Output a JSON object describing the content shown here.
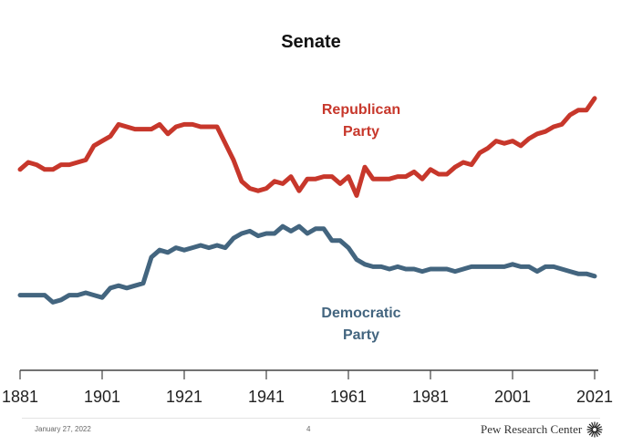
{
  "chart_data": {
    "type": "line",
    "title": "Senate",
    "x_ticks": [
      "1881",
      "1901",
      "1921",
      "1941",
      "1961",
      "1981",
      "2001",
      "2021"
    ],
    "xlim": [
      1881,
      2021
    ],
    "series": [
      {
        "name": "Republican Party",
        "label_lines": [
          "Republican",
          "Party"
        ],
        "color": "#c7372b",
        "points": [
          [
            1881,
            67
          ],
          [
            1883,
            70
          ],
          [
            1885,
            69
          ],
          [
            1887,
            67
          ],
          [
            1889,
            67
          ],
          [
            1891,
            69
          ],
          [
            1893,
            69
          ],
          [
            1895,
            70
          ],
          [
            1897,
            71
          ],
          [
            1899,
            77
          ],
          [
            1901,
            79
          ],
          [
            1903,
            81
          ],
          [
            1905,
            86
          ],
          [
            1907,
            85
          ],
          [
            1909,
            84
          ],
          [
            1911,
            84
          ],
          [
            1913,
            84
          ],
          [
            1915,
            86
          ],
          [
            1917,
            82
          ],
          [
            1919,
            85
          ],
          [
            1921,
            86
          ],
          [
            1923,
            86
          ],
          [
            1925,
            85
          ],
          [
            1927,
            85
          ],
          [
            1929,
            85
          ],
          [
            1931,
            78
          ],
          [
            1933,
            71
          ],
          [
            1935,
            62
          ],
          [
            1937,
            59
          ],
          [
            1939,
            58
          ],
          [
            1941,
            59
          ],
          [
            1943,
            62
          ],
          [
            1945,
            61
          ],
          [
            1947,
            64
          ],
          [
            1949,
            58
          ],
          [
            1951,
            63
          ],
          [
            1953,
            63
          ],
          [
            1955,
            64
          ],
          [
            1957,
            64
          ],
          [
            1959,
            61
          ],
          [
            1961,
            64
          ],
          [
            1963,
            56
          ],
          [
            1965,
            68
          ],
          [
            1967,
            63
          ],
          [
            1969,
            63
          ],
          [
            1971,
            63
          ],
          [
            1973,
            64
          ],
          [
            1975,
            64
          ],
          [
            1977,
            66
          ],
          [
            1979,
            63
          ],
          [
            1981,
            67
          ],
          [
            1983,
            65
          ],
          [
            1985,
            65
          ],
          [
            1987,
            68
          ],
          [
            1989,
            70
          ],
          [
            1991,
            69
          ],
          [
            1993,
            74
          ],
          [
            1995,
            76
          ],
          [
            1997,
            79
          ],
          [
            1999,
            78
          ],
          [
            2001,
            79
          ],
          [
            2003,
            77
          ],
          [
            2005,
            80
          ],
          [
            2007,
            82
          ],
          [
            2009,
            83
          ],
          [
            2011,
            85
          ],
          [
            2013,
            86
          ],
          [
            2015,
            90
          ],
          [
            2017,
            92
          ],
          [
            2019,
            92
          ],
          [
            2021,
            97
          ]
        ]
      },
      {
        "name": "Democratic Party",
        "label_lines": [
          "Democratic",
          "Party"
        ],
        "color": "#43657f",
        "points": [
          [
            1881,
            14
          ],
          [
            1883,
            14
          ],
          [
            1885,
            14
          ],
          [
            1887,
            14
          ],
          [
            1889,
            11
          ],
          [
            1891,
            12
          ],
          [
            1893,
            14
          ],
          [
            1895,
            14
          ],
          [
            1897,
            15
          ],
          [
            1899,
            14
          ],
          [
            1901,
            13
          ],
          [
            1903,
            17
          ],
          [
            1905,
            18
          ],
          [
            1907,
            17
          ],
          [
            1909,
            18
          ],
          [
            1911,
            19
          ],
          [
            1913,
            30
          ],
          [
            1915,
            33
          ],
          [
            1917,
            32
          ],
          [
            1919,
            34
          ],
          [
            1921,
            33
          ],
          [
            1923,
            34
          ],
          [
            1925,
            35
          ],
          [
            1927,
            34
          ],
          [
            1929,
            35
          ],
          [
            1931,
            34
          ],
          [
            1933,
            38
          ],
          [
            1935,
            40
          ],
          [
            1937,
            41
          ],
          [
            1939,
            39
          ],
          [
            1941,
            40
          ],
          [
            1943,
            40
          ],
          [
            1945,
            43
          ],
          [
            1947,
            41
          ],
          [
            1949,
            43
          ],
          [
            1951,
            40
          ],
          [
            1953,
            42
          ],
          [
            1955,
            42
          ],
          [
            1957,
            37
          ],
          [
            1959,
            37
          ],
          [
            1961,
            34
          ],
          [
            1963,
            29
          ],
          [
            1965,
            27
          ],
          [
            1967,
            26
          ],
          [
            1969,
            26
          ],
          [
            1971,
            25
          ],
          [
            1973,
            26
          ],
          [
            1975,
            25
          ],
          [
            1977,
            25
          ],
          [
            1979,
            24
          ],
          [
            1981,
            25
          ],
          [
            1983,
            25
          ],
          [
            1985,
            25
          ],
          [
            1987,
            24
          ],
          [
            1989,
            25
          ],
          [
            1991,
            26
          ],
          [
            1993,
            26
          ],
          [
            1995,
            26
          ],
          [
            1997,
            26
          ],
          [
            1999,
            26
          ],
          [
            2001,
            27
          ],
          [
            2003,
            26
          ],
          [
            2005,
            26
          ],
          [
            2007,
            24
          ],
          [
            2009,
            26
          ],
          [
            2011,
            26
          ],
          [
            2013,
            25
          ],
          [
            2015,
            24
          ],
          [
            2017,
            23
          ],
          [
            2019,
            23
          ],
          [
            2021,
            22
          ]
        ]
      }
    ]
  },
  "footer": {
    "date": "January 27, 2022",
    "page": "4",
    "brand": "Pew Research Center"
  },
  "icons": {
    "brand_mark": "sunburst-icon"
  }
}
